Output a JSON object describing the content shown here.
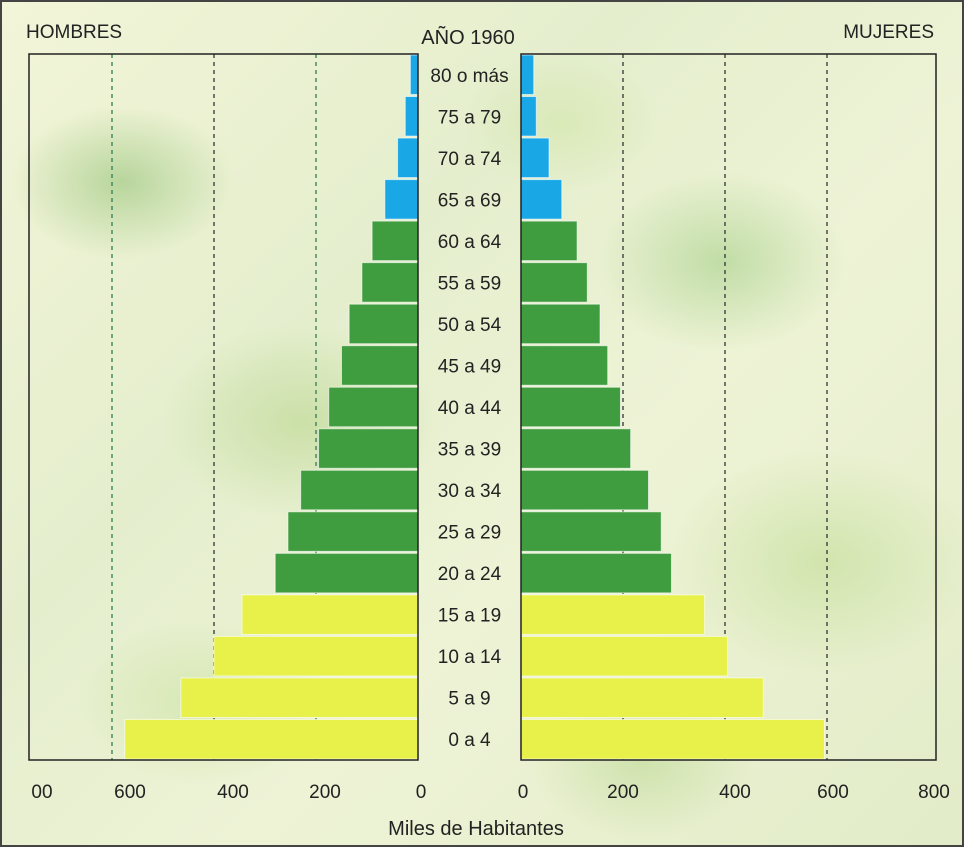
{
  "chart_data": {
    "type": "bar",
    "title": "AÑO 1960",
    "left_label": "HOMBRES",
    "right_label": "MUJERES",
    "xlabel": "Miles de Habitantes",
    "x_ticks_left": [
      "00",
      "600",
      "400",
      "200",
      "0"
    ],
    "x_ticks_right": [
      "0",
      "200",
      "400",
      "600",
      "800"
    ],
    "xlim": [
      0,
      800
    ],
    "grid": true,
    "categories": [
      "80 o más",
      "75 a 79",
      "70 a 74",
      "65 a 69",
      "60 a 64",
      "55 a 59",
      "50 a 54",
      "45 a 49",
      "40 a 44",
      "35 a 39",
      "30 a 34",
      "25 a 29",
      "20 a 24",
      "15 a 19",
      "10 a 14",
      "5 a 9",
      "0 a 4"
    ],
    "series": [
      {
        "name": "HOMBRES",
        "values": [
          15,
          25,
          40,
          65,
          90,
          110,
          135,
          150,
          175,
          195,
          230,
          255,
          280,
          345,
          400,
          465,
          575
        ]
      },
      {
        "name": "MUJERES",
        "values": [
          25,
          30,
          55,
          80,
          110,
          130,
          155,
          170,
          195,
          215,
          250,
          275,
          295,
          360,
          405,
          475,
          595
        ]
      }
    ],
    "colors": {
      "age_65_plus": "#1aa7e6",
      "age_20_64": "#3f9c3f",
      "age_0_19": "#e8f04a",
      "border": "#222222"
    }
  }
}
